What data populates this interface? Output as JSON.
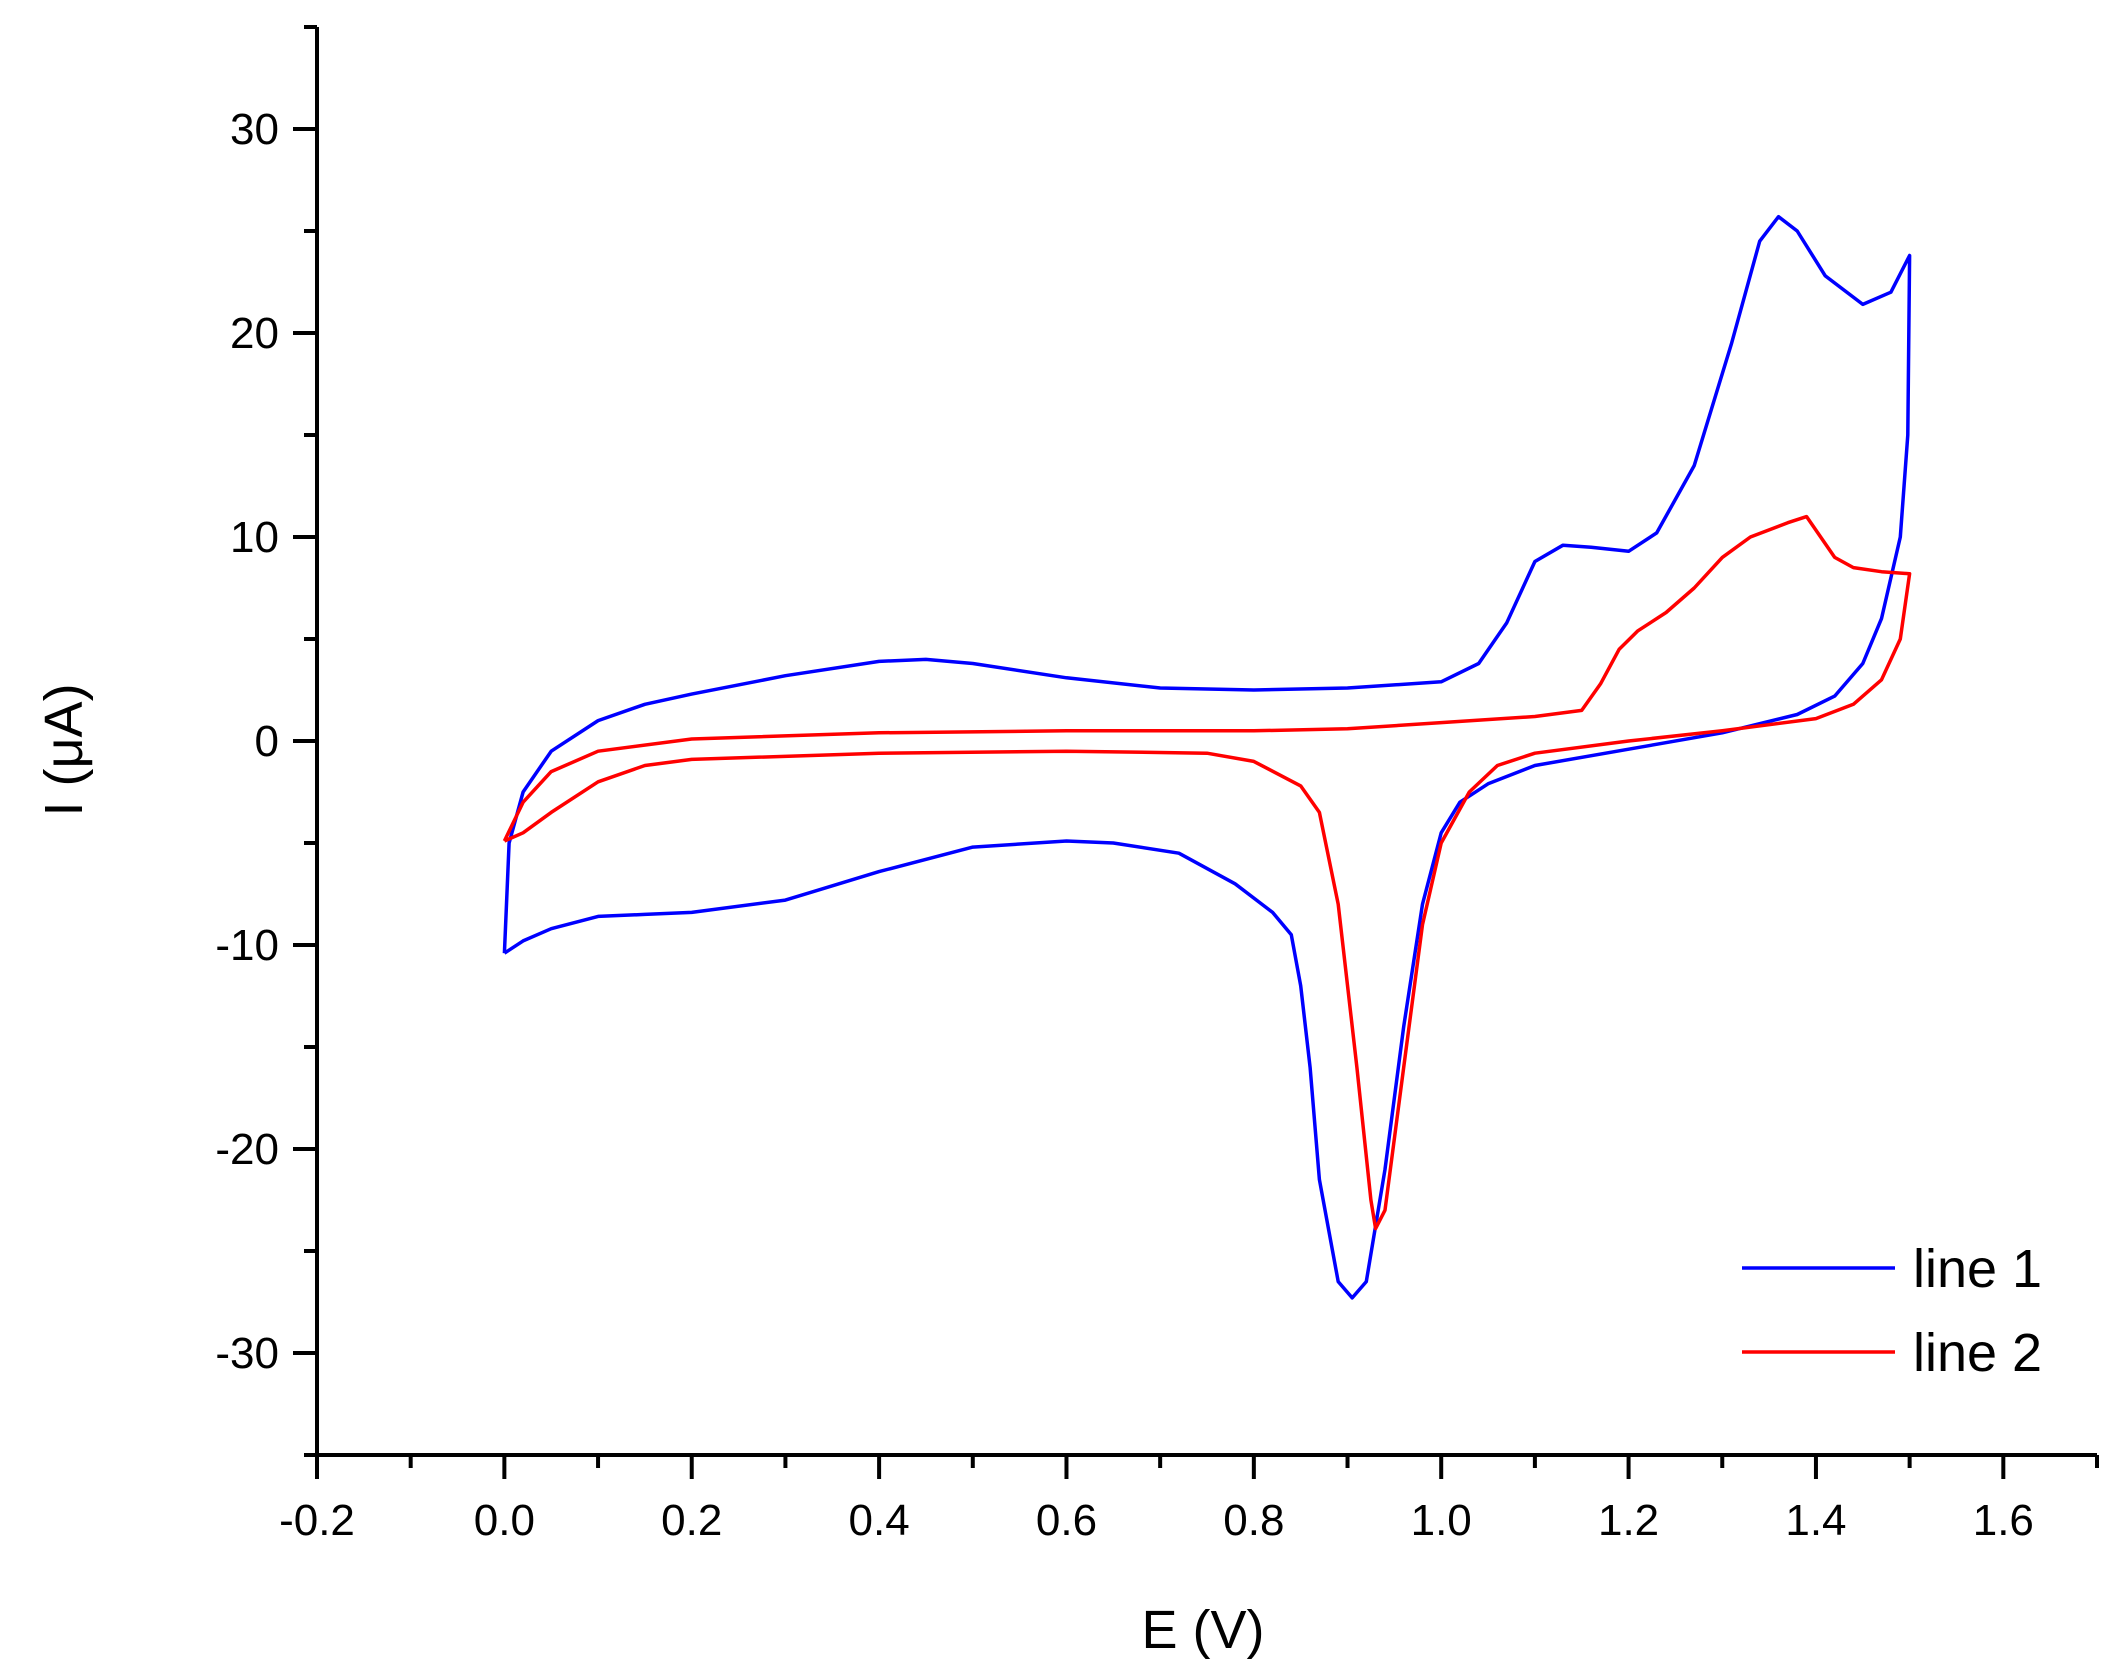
{
  "chart_data": {
    "type": "line",
    "xlabel": "E (V)",
    "ylabel": "I (μA)",
    "xlim": [
      -0.2,
      1.7
    ],
    "ylim": [
      -35,
      35
    ],
    "x_ticks": [
      -0.2,
      0.0,
      0.2,
      0.4,
      0.6,
      0.8,
      1.0,
      1.2,
      1.4,
      1.6
    ],
    "x_tick_labels": [
      "-0.2",
      "0.0",
      "0.2",
      "0.4",
      "0.6",
      "0.8",
      "1.0",
      "1.2",
      "1.4",
      "1.6"
    ],
    "y_ticks": [
      -30,
      -20,
      -10,
      0,
      10,
      20,
      30
    ],
    "y_tick_labels": [
      "-30",
      "-20",
      "-10",
      "0",
      "10",
      "20",
      "30"
    ],
    "grid": false,
    "legend_position": "bottom-right",
    "series": [
      {
        "name": "line 1",
        "color": "#0000ff",
        "points": [
          [
            0.0,
            -10.4
          ],
          [
            0.005,
            -5.0
          ],
          [
            0.02,
            -2.5
          ],
          [
            0.05,
            -0.5
          ],
          [
            0.1,
            1.0
          ],
          [
            0.15,
            1.8
          ],
          [
            0.2,
            2.3
          ],
          [
            0.3,
            3.2
          ],
          [
            0.4,
            3.9
          ],
          [
            0.45,
            4.0
          ],
          [
            0.5,
            3.8
          ],
          [
            0.6,
            3.1
          ],
          [
            0.7,
            2.6
          ],
          [
            0.8,
            2.5
          ],
          [
            0.9,
            2.6
          ],
          [
            1.0,
            2.9
          ],
          [
            1.04,
            3.8
          ],
          [
            1.07,
            5.8
          ],
          [
            1.1,
            8.8
          ],
          [
            1.13,
            9.6
          ],
          [
            1.16,
            9.5
          ],
          [
            1.2,
            9.3
          ],
          [
            1.23,
            10.2
          ],
          [
            1.27,
            13.5
          ],
          [
            1.31,
            19.5
          ],
          [
            1.34,
            24.5
          ],
          [
            1.36,
            25.7
          ],
          [
            1.38,
            25.0
          ],
          [
            1.41,
            22.8
          ],
          [
            1.45,
            21.4
          ],
          [
            1.48,
            22.0
          ],
          [
            1.5,
            23.8
          ],
          [
            1.498,
            15.0
          ],
          [
            1.49,
            10.0
          ],
          [
            1.47,
            6.0
          ],
          [
            1.45,
            3.8
          ],
          [
            1.42,
            2.2
          ],
          [
            1.38,
            1.3
          ],
          [
            1.3,
            0.4
          ],
          [
            1.2,
            -0.4
          ],
          [
            1.1,
            -1.2
          ],
          [
            1.05,
            -2.1
          ],
          [
            1.02,
            -3.0
          ],
          [
            1.0,
            -4.5
          ],
          [
            0.98,
            -8.0
          ],
          [
            0.96,
            -14.0
          ],
          [
            0.94,
            -21.0
          ],
          [
            0.92,
            -26.5
          ],
          [
            0.905,
            -27.3
          ],
          [
            0.89,
            -26.5
          ],
          [
            0.87,
            -21.5
          ],
          [
            0.86,
            -16.0
          ],
          [
            0.85,
            -12.0
          ],
          [
            0.84,
            -9.5
          ],
          [
            0.82,
            -8.4
          ],
          [
            0.78,
            -7.0
          ],
          [
            0.72,
            -5.5
          ],
          [
            0.65,
            -5.0
          ],
          [
            0.6,
            -4.9
          ],
          [
            0.5,
            -5.2
          ],
          [
            0.4,
            -6.4
          ],
          [
            0.3,
            -7.8
          ],
          [
            0.2,
            -8.4
          ],
          [
            0.15,
            -8.5
          ],
          [
            0.1,
            -8.6
          ],
          [
            0.05,
            -9.2
          ],
          [
            0.02,
            -9.8
          ],
          [
            0.0,
            -10.4
          ]
        ]
      },
      {
        "name": "line 2",
        "color": "#ff0000",
        "points": [
          [
            0.0,
            -4.9
          ],
          [
            0.02,
            -4.5
          ],
          [
            0.05,
            -3.5
          ],
          [
            0.1,
            -2.0
          ],
          [
            0.15,
            -1.2
          ],
          [
            0.2,
            -0.9
          ],
          [
            0.4,
            -0.6
          ],
          [
            0.6,
            -0.5
          ],
          [
            0.75,
            -0.6
          ],
          [
            0.8,
            -1.0
          ],
          [
            0.85,
            -2.2
          ],
          [
            0.87,
            -3.5
          ],
          [
            0.89,
            -8.0
          ],
          [
            0.91,
            -16.0
          ],
          [
            0.925,
            -22.5
          ],
          [
            0.93,
            -23.9
          ],
          [
            0.94,
            -23.0
          ],
          [
            0.96,
            -16.0
          ],
          [
            0.98,
            -9.0
          ],
          [
            1.0,
            -5.0
          ],
          [
            1.03,
            -2.5
          ],
          [
            1.06,
            -1.2
          ],
          [
            1.1,
            -0.6
          ],
          [
            1.2,
            0.0
          ],
          [
            1.3,
            0.5
          ],
          [
            1.4,
            1.1
          ],
          [
            1.44,
            1.8
          ],
          [
            1.47,
            3.0
          ],
          [
            1.49,
            5.0
          ],
          [
            1.5,
            8.2
          ],
          [
            1.47,
            8.3
          ],
          [
            1.44,
            8.5
          ],
          [
            1.42,
            9.0
          ],
          [
            1.39,
            11.0
          ],
          [
            1.37,
            10.7
          ],
          [
            1.33,
            10.0
          ],
          [
            1.3,
            9.0
          ],
          [
            1.27,
            7.5
          ],
          [
            1.24,
            6.3
          ],
          [
            1.21,
            5.4
          ],
          [
            1.19,
            4.5
          ],
          [
            1.17,
            2.8
          ],
          [
            1.15,
            1.5
          ],
          [
            1.1,
            1.2
          ],
          [
            1.0,
            0.9
          ],
          [
            0.9,
            0.6
          ],
          [
            0.8,
            0.5
          ],
          [
            0.6,
            0.5
          ],
          [
            0.4,
            0.4
          ],
          [
            0.2,
            0.1
          ],
          [
            0.1,
            -0.5
          ],
          [
            0.05,
            -1.5
          ],
          [
            0.02,
            -3.0
          ],
          [
            0.0,
            -4.9
          ]
        ]
      }
    ]
  }
}
